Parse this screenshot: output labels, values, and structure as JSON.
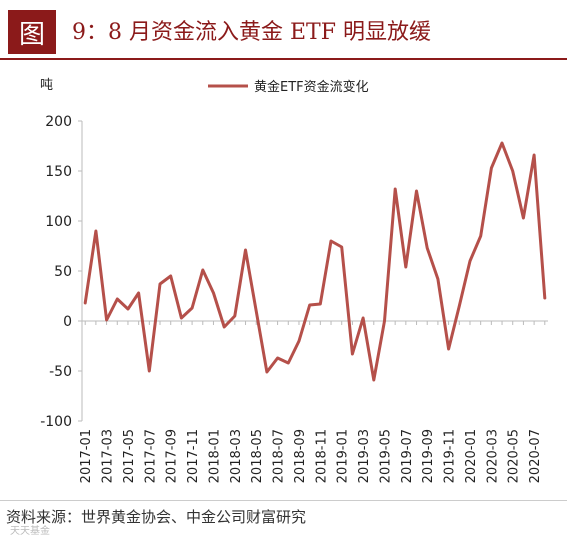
{
  "header": {
    "figure_label": "图",
    "title": "9：8 月资金流入黄金 ETF 明显放缓"
  },
  "source": "资料来源：世界黄金协会、中金公司财富研究",
  "watermark": "天天基金",
  "colors": {
    "accent": "#8b1a1a",
    "series": "#b5504a",
    "axis": "#bbbbbb"
  },
  "chart_data": {
    "type": "line",
    "ylabel": "吨",
    "ylim": [
      -100,
      200
    ],
    "yticks": [
      -100,
      -50,
      0,
      50,
      100,
      150,
      200
    ],
    "legend_position": "top-center",
    "grid": false,
    "x": [
      "2017-01",
      "2017-02",
      "2017-03",
      "2017-04",
      "2017-05",
      "2017-06",
      "2017-07",
      "2017-08",
      "2017-09",
      "2017-10",
      "2017-11",
      "2017-12",
      "2018-01",
      "2018-02",
      "2018-03",
      "2018-04",
      "2018-05",
      "2018-06",
      "2018-07",
      "2018-08",
      "2018-09",
      "2018-10",
      "2018-11",
      "2018-12",
      "2019-01",
      "2019-02",
      "2019-03",
      "2019-04",
      "2019-05",
      "2019-06",
      "2019-07",
      "2019-08",
      "2019-09",
      "2019-10",
      "2019-11",
      "2019-12",
      "2020-01",
      "2020-02",
      "2020-03",
      "2020-04",
      "2020-05",
      "2020-06",
      "2020-07",
      "2020-08"
    ],
    "xtick_labels": [
      "2017-01",
      "2017-03",
      "2017-05",
      "2017-07",
      "2017-09",
      "2017-11",
      "2018-01",
      "2018-03",
      "2018-05",
      "2018-07",
      "2018-09",
      "2018-11",
      "2019-01",
      "2019-03",
      "2019-05",
      "2019-07",
      "2019-09",
      "2019-11",
      "2020-01",
      "2020-03",
      "2020-05",
      "2020-07"
    ],
    "series": [
      {
        "name": "黄金ETF资金流变化",
        "values": [
          18,
          90,
          1,
          22,
          12,
          28,
          -50,
          37,
          45,
          3,
          13,
          51,
          28,
          -6,
          5,
          71,
          10,
          -51,
          -37,
          -42,
          -20,
          16,
          17,
          80,
          74,
          -33,
          3,
          -59,
          0,
          132,
          54,
          130,
          73,
          42,
          -28,
          15,
          60,
          85,
          153,
          178,
          150,
          103,
          166,
          23
        ]
      }
    ]
  }
}
